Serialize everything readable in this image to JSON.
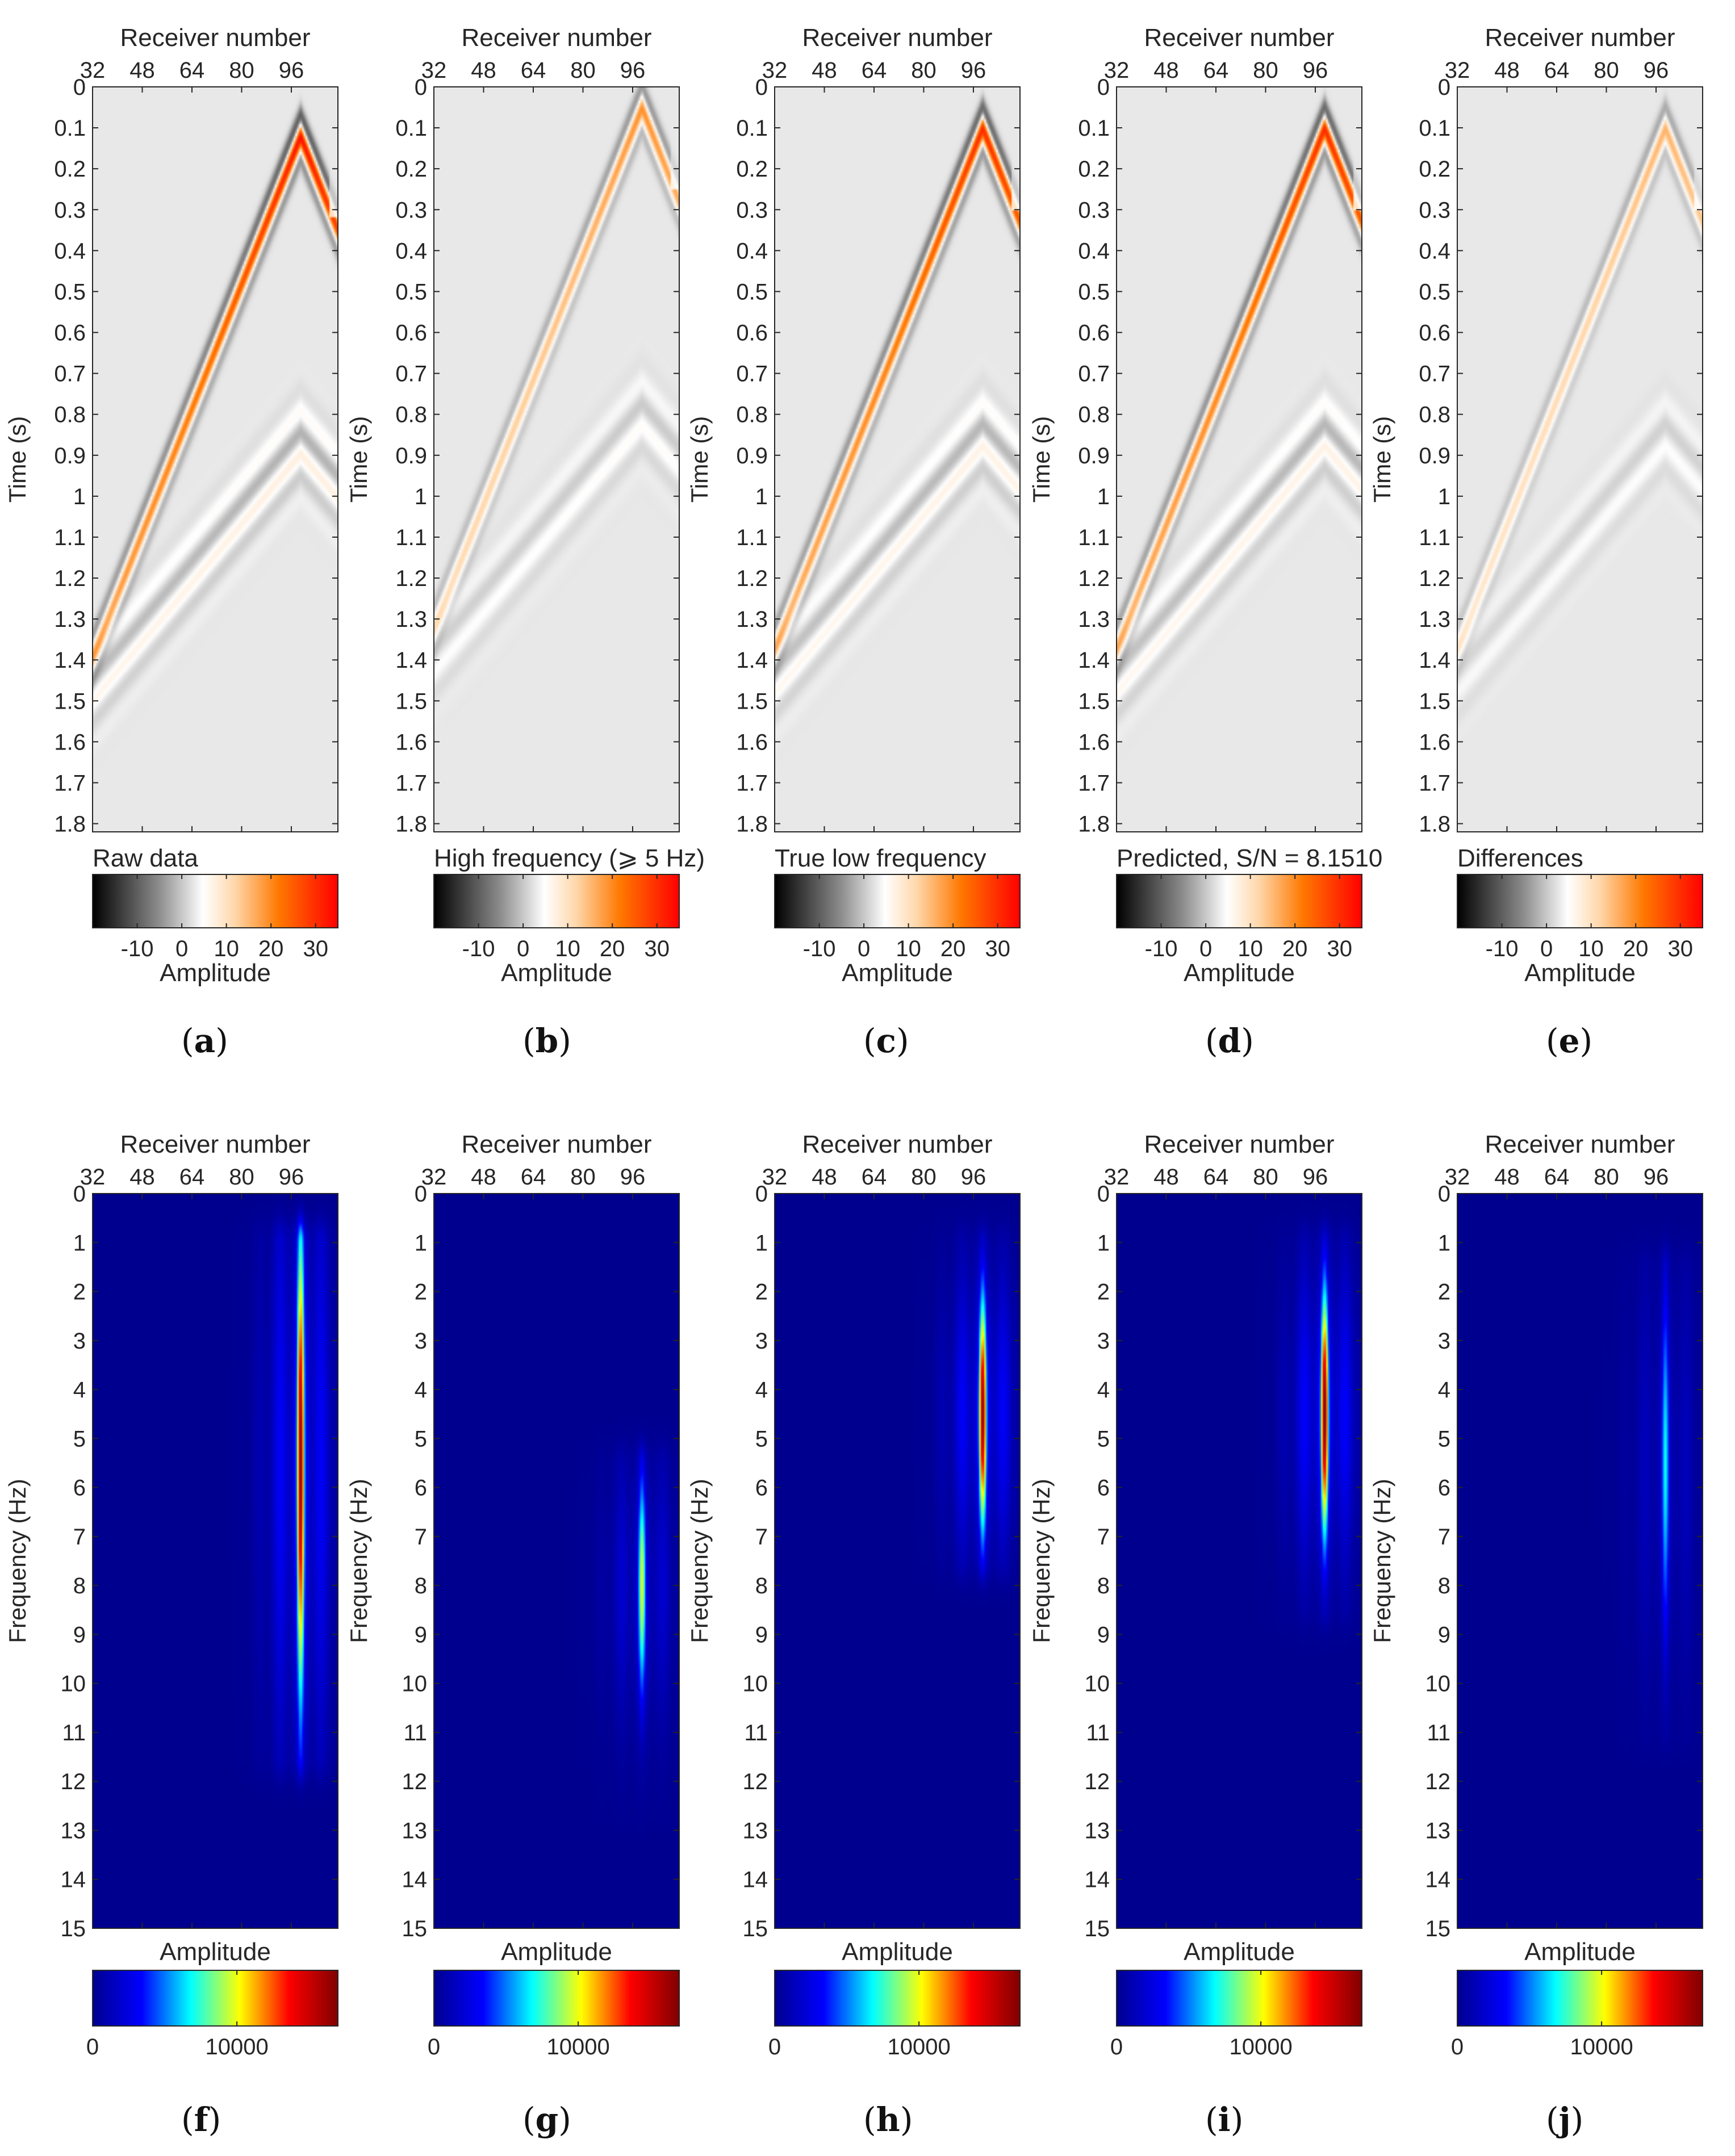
{
  "colors": {
    "seismic_stops": [
      "#000000",
      "#8a8a8a",
      "#ffffff",
      "#ffd9b0",
      "#ff7a00",
      "#ff0000"
    ],
    "jet_stops": [
      "#00008f",
      "#0000ff",
      "#00ffff",
      "#ffff00",
      "#ff0000",
      "#800000"
    ],
    "gray_bg": "#b2b2b2",
    "jet_bg": "#00008f",
    "axis": "#262626"
  },
  "chart_data": [
    {
      "id": "a",
      "type": "heatmap",
      "kind": "time",
      "title": "Raw data",
      "caption_letter": "a",
      "xlabel": "Receiver number",
      "ylabel": "Time (s)",
      "xticks": [
        "32",
        "48",
        "64",
        "80",
        "96"
      ],
      "xlim": [
        32,
        111
      ],
      "yticks": [
        "0",
        "0.1",
        "0.2",
        "0.3",
        "0.4",
        "0.5",
        "0.6",
        "0.7",
        "0.8",
        "0.9",
        "1",
        "1.1",
        "1.2",
        "1.3",
        "1.4",
        "1.5",
        "1.6",
        "1.7",
        "1.8"
      ],
      "ylim": [
        0,
        1.82
      ],
      "colorbar": {
        "label": "Amplitude",
        "ticks": [
          "-10",
          "0",
          "10",
          "20",
          "30"
        ],
        "range": [
          -20,
          35
        ]
      },
      "event": {
        "apex_receiver": 99,
        "apex_time": 0.12,
        "moveout_s_per_receiver": 0.019,
        "peak_amplitude": 33
      }
    },
    {
      "id": "b",
      "type": "heatmap",
      "kind": "time",
      "title": "High frequency (⩾ 5 Hz)",
      "caption_letter": "b",
      "xlabel": "Receiver number",
      "ylabel": "Time (s)",
      "xticks": [
        "32",
        "48",
        "64",
        "80",
        "96"
      ],
      "xlim": [
        32,
        111
      ],
      "yticks": [
        "0",
        "0.1",
        "0.2",
        "0.3",
        "0.4",
        "0.5",
        "0.6",
        "0.7",
        "0.8",
        "0.9",
        "1",
        "1.1",
        "1.2",
        "1.3",
        "1.4",
        "1.5",
        "1.6",
        "1.7",
        "1.8"
      ],
      "ylim": [
        0,
        1.82
      ],
      "colorbar": {
        "label": "Amplitude",
        "ticks": [
          "-10",
          "0",
          "10",
          "20",
          "30"
        ],
        "range": [
          -20,
          35
        ]
      },
      "event": {
        "apex_receiver": 99,
        "apex_time": 0.05,
        "moveout_s_per_receiver": 0.019,
        "peak_amplitude": 18
      }
    },
    {
      "id": "c",
      "type": "heatmap",
      "kind": "time",
      "title": "True low frequency",
      "caption_letter": "c",
      "xlabel": "Receiver number",
      "ylabel": "Time (s)",
      "xticks": [
        "32",
        "48",
        "64",
        "80",
        "96"
      ],
      "xlim": [
        32,
        111
      ],
      "yticks": [
        "0",
        "0.1",
        "0.2",
        "0.3",
        "0.4",
        "0.5",
        "0.6",
        "0.7",
        "0.8",
        "0.9",
        "1",
        "1.1",
        "1.2",
        "1.3",
        "1.4",
        "1.5",
        "1.6",
        "1.7",
        "1.8"
      ],
      "ylim": [
        0,
        1.82
      ],
      "colorbar": {
        "label": "Amplitude",
        "ticks": [
          "-10",
          "0",
          "10",
          "20",
          "30"
        ],
        "range": [
          -20,
          35
        ]
      },
      "event": {
        "apex_receiver": 99,
        "apex_time": 0.1,
        "moveout_s_per_receiver": 0.019,
        "peak_amplitude": 30
      }
    },
    {
      "id": "d",
      "type": "heatmap",
      "kind": "time",
      "title": "Predicted, S/N = 8.1510",
      "caption_letter": "d",
      "xlabel": "Receiver number",
      "ylabel": "Time (s)",
      "xticks": [
        "32",
        "48",
        "64",
        "80",
        "96"
      ],
      "xlim": [
        32,
        111
      ],
      "yticks": [
        "0",
        "0.1",
        "0.2",
        "0.3",
        "0.4",
        "0.5",
        "0.6",
        "0.7",
        "0.8",
        "0.9",
        "1",
        "1.1",
        "1.2",
        "1.3",
        "1.4",
        "1.5",
        "1.6",
        "1.7",
        "1.8"
      ],
      "ylim": [
        0,
        1.82
      ],
      "colorbar": {
        "label": "Amplitude",
        "ticks": [
          "-10",
          "0",
          "10",
          "20",
          "30"
        ],
        "range": [
          -20,
          35
        ]
      },
      "event": {
        "apex_receiver": 99,
        "apex_time": 0.1,
        "moveout_s_per_receiver": 0.019,
        "peak_amplitude": 30
      }
    },
    {
      "id": "e",
      "type": "heatmap",
      "kind": "time",
      "title": "Differences",
      "caption_letter": "e",
      "xlabel": "Receiver number",
      "ylabel": "Time (s)",
      "xticks": [
        "32",
        "48",
        "64",
        "80",
        "96"
      ],
      "xlim": [
        32,
        111
      ],
      "yticks": [
        "0",
        "0.1",
        "0.2",
        "0.3",
        "0.4",
        "0.5",
        "0.6",
        "0.7",
        "0.8",
        "0.9",
        "1",
        "1.1",
        "1.2",
        "1.3",
        "1.4",
        "1.5",
        "1.6",
        "1.7",
        "1.8"
      ],
      "ylim": [
        0,
        1.82
      ],
      "colorbar": {
        "label": "Amplitude",
        "ticks": [
          "-10",
          "0",
          "10",
          "20",
          "30"
        ],
        "range": [
          -20,
          35
        ]
      },
      "event": {
        "apex_receiver": 99,
        "apex_time": 0.1,
        "moveout_s_per_receiver": 0.019,
        "peak_amplitude": 14
      }
    },
    {
      "id": "f",
      "type": "heatmap",
      "kind": "freq",
      "title": "Amplitude",
      "caption_letter": "f",
      "xlabel": "Receiver number",
      "ylabel": "Frequency (Hz)",
      "xticks": [
        "32",
        "48",
        "64",
        "80",
        "96"
      ],
      "xlim": [
        32,
        111
      ],
      "yticks": [
        "0",
        "1",
        "2",
        "3",
        "4",
        "5",
        "6",
        "7",
        "8",
        "9",
        "10",
        "11",
        "12",
        "13",
        "14",
        "15"
      ],
      "ylim": [
        0,
        15
      ],
      "colorbar": {
        "ticks": [
          "0",
          "10000"
        ],
        "range": [
          0,
          17000
        ]
      },
      "event": {
        "apex_receiver": 99,
        "f_min": 1,
        "f_max": 11.5,
        "peak_freq": 5.5,
        "bandwidth": 3.5,
        "peak_amplitude": 16500
      }
    },
    {
      "id": "g",
      "type": "heatmap",
      "kind": "freq",
      "title": "Amplitude",
      "caption_letter": "g",
      "xlabel": "Receiver number",
      "ylabel": "Frequency (Hz)",
      "xticks": [
        "32",
        "48",
        "64",
        "80",
        "96"
      ],
      "xlim": [
        32,
        111
      ],
      "yticks": [
        "0",
        "1",
        "2",
        "3",
        "4",
        "5",
        "6",
        "7",
        "8",
        "9",
        "10",
        "11",
        "12",
        "13",
        "14",
        "15"
      ],
      "ylim": [
        0,
        15
      ],
      "colorbar": {
        "ticks": [
          "0",
          "10000"
        ],
        "range": [
          0,
          17000
        ]
      },
      "event": {
        "apex_receiver": 99,
        "f_min": 5.5,
        "f_max": 12.5,
        "peak_freq": 8,
        "bandwidth": 1.6,
        "peak_amplitude": 10000
      }
    },
    {
      "id": "h",
      "type": "heatmap",
      "kind": "freq",
      "title": "Amplitude",
      "caption_letter": "h",
      "xlabel": "Receiver number",
      "ylabel": "Frequency (Hz)",
      "xticks": [
        "32",
        "48",
        "64",
        "80",
        "96"
      ],
      "xlim": [
        32,
        111
      ],
      "yticks": [
        "0",
        "1",
        "2",
        "3",
        "4",
        "5",
        "6",
        "7",
        "8",
        "9",
        "10",
        "11",
        "12",
        "13",
        "14",
        "15"
      ],
      "ylim": [
        0,
        15
      ],
      "colorbar": {
        "ticks": [
          "0",
          "10000"
        ],
        "range": [
          0,
          17000
        ]
      },
      "event": {
        "apex_receiver": 99,
        "f_min": 1,
        "f_max": 7.5,
        "peak_freq": 4.5,
        "bandwidth": 1.7,
        "peak_amplitude": 16500
      }
    },
    {
      "id": "i",
      "type": "heatmap",
      "kind": "freq",
      "title": "Amplitude",
      "caption_letter": "i",
      "xlabel": "Receiver number",
      "ylabel": "Frequency (Hz)",
      "xticks": [
        "32",
        "48",
        "64",
        "80",
        "96"
      ],
      "xlim": [
        32,
        111
      ],
      "yticks": [
        "0",
        "1",
        "2",
        "3",
        "4",
        "5",
        "6",
        "7",
        "8",
        "9",
        "10",
        "11",
        "12",
        "13",
        "14",
        "15"
      ],
      "ylim": [
        0,
        15
      ],
      "colorbar": {
        "ticks": [
          "0",
          "10000"
        ],
        "range": [
          0,
          17000
        ]
      },
      "event": {
        "apex_receiver": 99,
        "f_min": 1,
        "f_max": 8.5,
        "peak_freq": 4.5,
        "bandwidth": 1.8,
        "peak_amplitude": 17000
      }
    },
    {
      "id": "j",
      "type": "heatmap",
      "kind": "freq",
      "title": "Amplitude",
      "caption_letter": "j",
      "xlabel": "Receiver number",
      "ylabel": "Frequency (Hz)",
      "xticks": [
        "32",
        "48",
        "64",
        "80",
        "96"
      ],
      "xlim": [
        32,
        111
      ],
      "yticks": [
        "0",
        "1",
        "2",
        "3",
        "4",
        "5",
        "6",
        "7",
        "8",
        "9",
        "10",
        "11",
        "12",
        "13",
        "14",
        "15"
      ],
      "ylim": [
        0,
        15
      ],
      "colorbar": {
        "ticks": [
          "0",
          "10000"
        ],
        "range": [
          0,
          17000
        ]
      },
      "event": {
        "apex_receiver": 99,
        "f_min": 1.5,
        "f_max": 11,
        "peak_freq": 5.5,
        "bandwidth": 2.5,
        "peak_amplitude": 7000
      }
    }
  ]
}
